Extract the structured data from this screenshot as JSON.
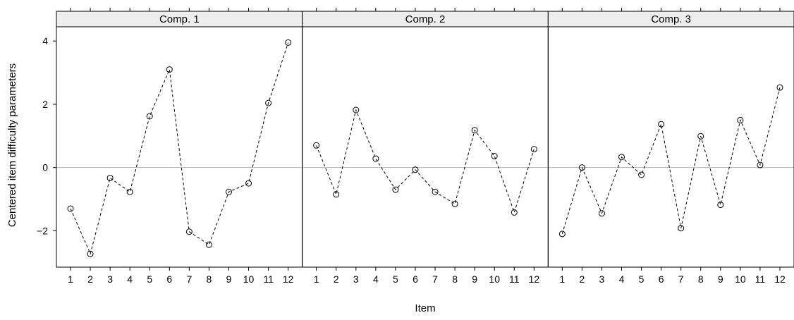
{
  "chart_data": {
    "type": "line",
    "xlabel": "Item",
    "ylabel": "Centered item difficulty parameters",
    "categories": [
      "1",
      "2",
      "3",
      "4",
      "5",
      "6",
      "7",
      "8",
      "9",
      "10",
      "11",
      "12"
    ],
    "y_ticks": [
      -2,
      0,
      2,
      4
    ],
    "y_tick_labels": [
      "−2",
      "0",
      "2",
      "4"
    ],
    "ylim": [
      -3.15,
      4.45
    ],
    "reference_line_y": 0,
    "panels": [
      {
        "name": "Comp. 1",
        "values": [
          -1.3,
          -2.73,
          -0.33,
          -0.77,
          1.62,
          3.1,
          -2.03,
          -2.44,
          -0.77,
          -0.5,
          2.04,
          3.95
        ]
      },
      {
        "name": "Comp. 2",
        "values": [
          0.7,
          -0.85,
          1.82,
          0.28,
          -0.7,
          -0.07,
          -0.77,
          -1.15,
          1.18,
          0.36,
          -1.42,
          0.58
        ]
      },
      {
        "name": "Comp. 3",
        "values": [
          -2.1,
          0.0,
          -1.45,
          0.33,
          -0.23,
          1.37,
          -1.92,
          0.99,
          -1.18,
          1.5,
          0.08,
          2.53
        ]
      }
    ],
    "style": {
      "line": "#000000",
      "point": "#000000",
      "reference_line": "#b0b0b0",
      "strip_background": "#eeeeee",
      "frame": "#000000"
    }
  }
}
